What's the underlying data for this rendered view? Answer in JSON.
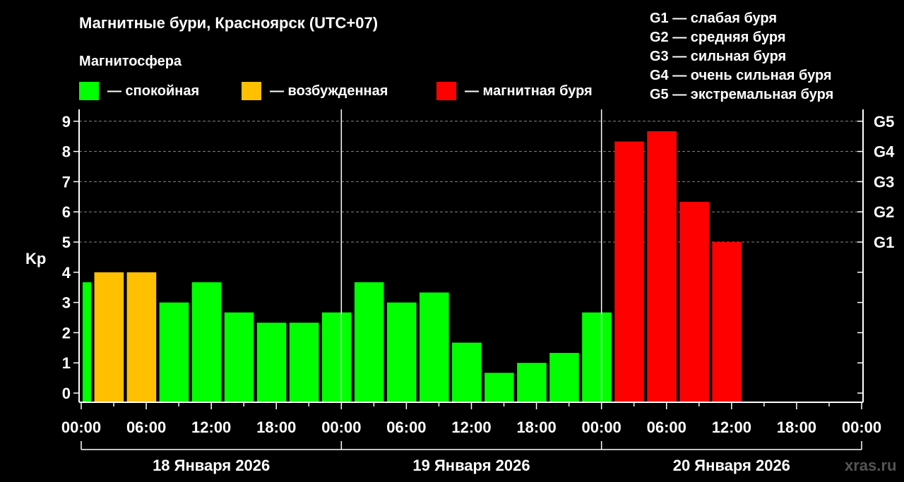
{
  "chart_data": {
    "type": "bar",
    "title": "Магнитные бури, Красноярск (UTC+07)",
    "legend_title": "Магнитосфера",
    "legend": [
      {
        "label": "— спокойная",
        "color": "#00ff00"
      },
      {
        "label": "— возбужденная",
        "color": "#ffc000"
      },
      {
        "label": "— магнитная буря",
        "color": "#ff0000"
      }
    ],
    "g_scale": [
      "G1 — слабая буря",
      "G2 — средняя буря",
      "G3 — сильная буря",
      "G4 — очень сильная буря",
      "G5 — экстремальная буря"
    ],
    "ylabel": "Kp",
    "ylim": [
      0,
      9
    ],
    "yticks": [
      "0",
      "1",
      "2",
      "3",
      "4",
      "5",
      "6",
      "7",
      "8",
      "9"
    ],
    "right_ticks": [
      {
        "value": 5,
        "label": "G1"
      },
      {
        "value": 6,
        "label": "G2"
      },
      {
        "value": 7,
        "label": "G3"
      },
      {
        "value": 8,
        "label": "G4"
      },
      {
        "value": 9,
        "label": "G5"
      }
    ],
    "xlim_hours": [
      0,
      72
    ],
    "xticks": [
      "00:00",
      "06:00",
      "12:00",
      "18:00",
      "00:00",
      "06:00",
      "12:00",
      "18:00",
      "00:00",
      "06:00",
      "12:00",
      "18:00",
      "00:00"
    ],
    "days": [
      "18 Января 2026",
      "19 Января 2026",
      "20 Января 2026"
    ],
    "bar_hours": 3,
    "bars": [
      {
        "start": -2,
        "kp": 3.67
      },
      {
        "start": 1,
        "kp": 4
      },
      {
        "start": 4,
        "kp": 4
      },
      {
        "start": 7,
        "kp": 3
      },
      {
        "start": 10,
        "kp": 3.67
      },
      {
        "start": 13,
        "kp": 2.67
      },
      {
        "start": 16,
        "kp": 2.33
      },
      {
        "start": 19,
        "kp": 2.33
      },
      {
        "start": 22,
        "kp": 2.67
      },
      {
        "start": 25,
        "kp": 3.67
      },
      {
        "start": 28,
        "kp": 3
      },
      {
        "start": 31,
        "kp": 3.33
      },
      {
        "start": 34,
        "kp": 1.67
      },
      {
        "start": 37,
        "kp": 0.67
      },
      {
        "start": 40,
        "kp": 1
      },
      {
        "start": 43,
        "kp": 1.33
      },
      {
        "start": 46,
        "kp": 2.67
      },
      {
        "start": 49,
        "kp": 8.33
      },
      {
        "start": 52,
        "kp": 8.67
      },
      {
        "start": 55,
        "kp": 6.33
      },
      {
        "start": 58,
        "kp": 5
      }
    ],
    "grid": "dashed at 5-9"
  },
  "watermark": "xras.ru"
}
